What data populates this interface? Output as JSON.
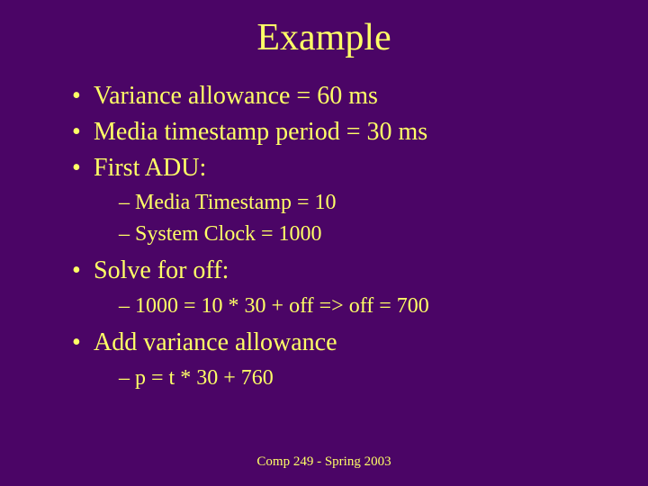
{
  "colors": {
    "background": "#4b0566",
    "text": "#ffff66"
  },
  "typography": {
    "family": "Times New Roman, serif",
    "title_size_pt": 42,
    "bullet_size_pt": 28,
    "sub_bullet_size_pt": 24,
    "footer_size_pt": 15
  },
  "title": "Example",
  "bullets": [
    {
      "text": "Variance allowance = 60 ms",
      "sub": []
    },
    {
      "text": "Media timestamp period = 30 ms",
      "sub": []
    },
    {
      "text": "First ADU:",
      "sub": [
        "Media Timestamp = 10",
        "System Clock = 1000"
      ]
    },
    {
      "text": "Solve for off:",
      "sub": [
        "1000 = 10 * 30 + off  =>  off = 700"
      ]
    },
    {
      "text": "Add variance allowance",
      "sub": [
        "p = t * 30 + 760"
      ]
    }
  ],
  "footer": "Comp 249 - Spring 2003"
}
